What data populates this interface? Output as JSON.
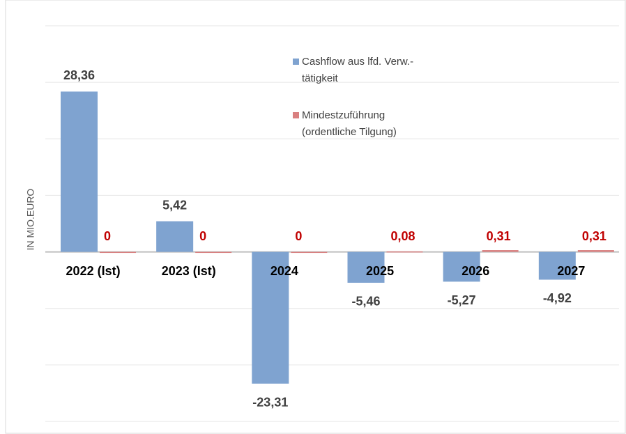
{
  "chart_data": {
    "type": "bar",
    "categories": [
      "2022 (Ist)",
      "2023 (Ist)",
      "2024",
      "2025",
      "2026",
      "2027"
    ],
    "y_axis_label": "IN MIO.EURO",
    "series": [
      {
        "name": "Cashflow aus lfd. Verw.-tätigkeit",
        "color": "#7fa3d0",
        "values": [
          28.36,
          5.42,
          -23.31,
          -5.46,
          -5.27,
          -4.92
        ],
        "value_labels": [
          "28,36",
          "5,42",
          "-23,31",
          "-5,46",
          "-5,27",
          "-4,92"
        ]
      },
      {
        "name": "Mindestzuführung (ordentliche Tilgung)",
        "color": "#d98080",
        "values": [
          0,
          0,
          0,
          0.08,
          0.31,
          0.31
        ],
        "value_labels": [
          "0",
          "0",
          "0",
          "0,08",
          "0,31",
          "0,31"
        ]
      }
    ],
    "ylim": [
      -30,
      40
    ],
    "yticks": [
      -30,
      -20,
      -10,
      0,
      10,
      20,
      30,
      40
    ],
    "grid": true
  }
}
